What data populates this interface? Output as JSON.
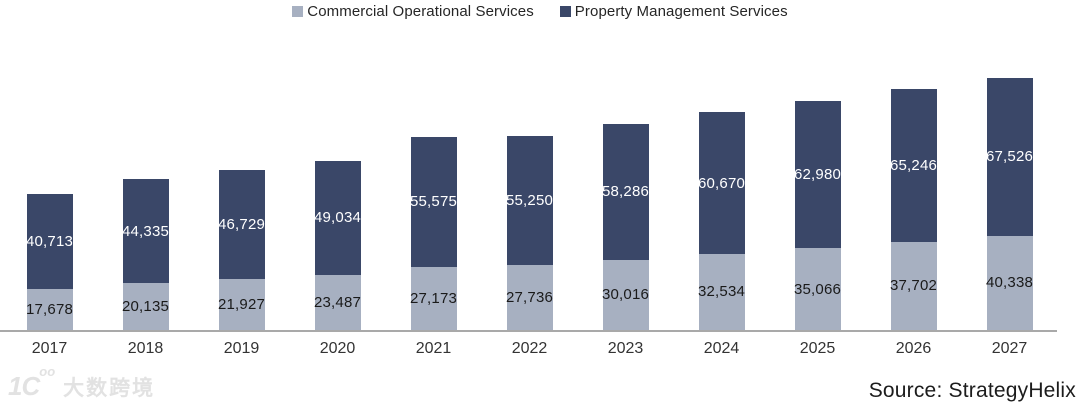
{
  "chart_data": {
    "type": "bar",
    "stacked": true,
    "title": "",
    "xlabel": "",
    "ylabel": "",
    "grid": false,
    "legend_position": "top-center",
    "axis_color": "#a9a9a9",
    "categories": [
      "2017",
      "2018",
      "2019",
      "2020",
      "2021",
      "2022",
      "2023",
      "2024",
      "2025",
      "2026",
      "2027"
    ],
    "series": [
      {
        "name": "Commercial Operational Services",
        "color": "#a7b0c1",
        "label_color": "#1a1a1a",
        "values": [
          17678,
          20135,
          21927,
          23487,
          27173,
          27736,
          30016,
          32534,
          35066,
          37702,
          40338
        ]
      },
      {
        "name": "Property Management Services",
        "color": "#3a4768",
        "label_color": "#ffffff",
        "values": [
          40713,
          44335,
          46729,
          49034,
          55575,
          55250,
          58286,
          60670,
          62980,
          65246,
          67526
        ]
      }
    ],
    "value_label_format": "thousands-comma"
  },
  "legend": {
    "items": [
      {
        "label": "Commercial Operational Services"
      },
      {
        "label": "Property Management Services"
      }
    ]
  },
  "source": {
    "label": "Source: StrategyHelix"
  },
  "watermark": {
    "logo_text": "1C",
    "logo_sup": "oo",
    "text": "大数跨境"
  }
}
